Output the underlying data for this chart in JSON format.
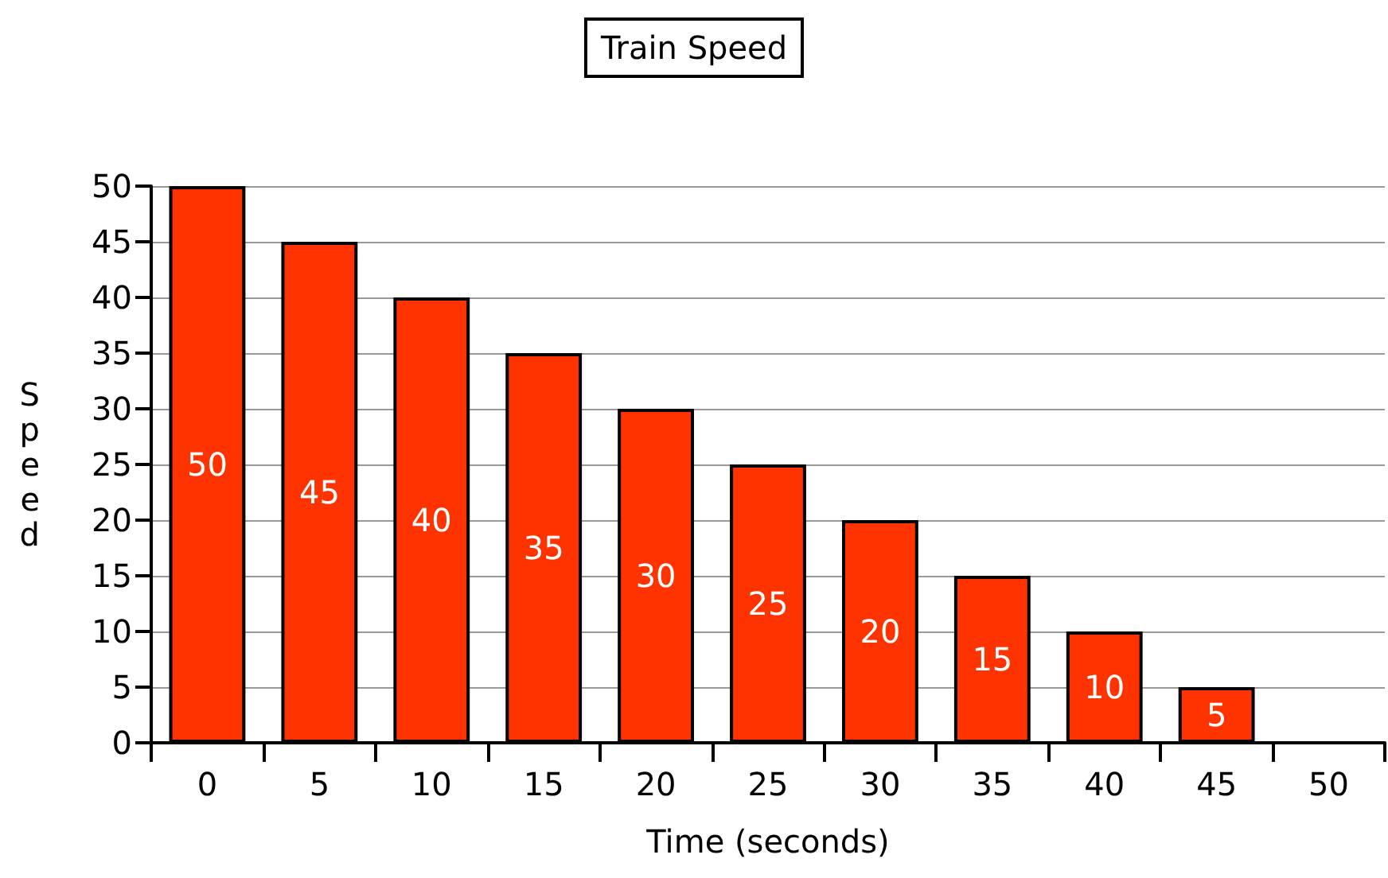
{
  "chart_data": {
    "type": "bar",
    "title": "Train Speed",
    "xlabel": "Time (seconds)",
    "ylabel": "Speed",
    "categories": [
      "0",
      "5",
      "10",
      "15",
      "20",
      "25",
      "30",
      "35",
      "40",
      "45",
      "50"
    ],
    "values": [
      50,
      45,
      40,
      35,
      30,
      25,
      20,
      15,
      10,
      5,
      0
    ],
    "value_labels": [
      "50",
      "45",
      "40",
      "35",
      "30",
      "25",
      "20",
      "15",
      "10",
      "5",
      null
    ],
    "color": "#ff3300",
    "ylim": [
      0,
      50
    ],
    "yticks": [
      0,
      5,
      10,
      15,
      20,
      25,
      30,
      35,
      40,
      45,
      50
    ],
    "grid": "y"
  }
}
